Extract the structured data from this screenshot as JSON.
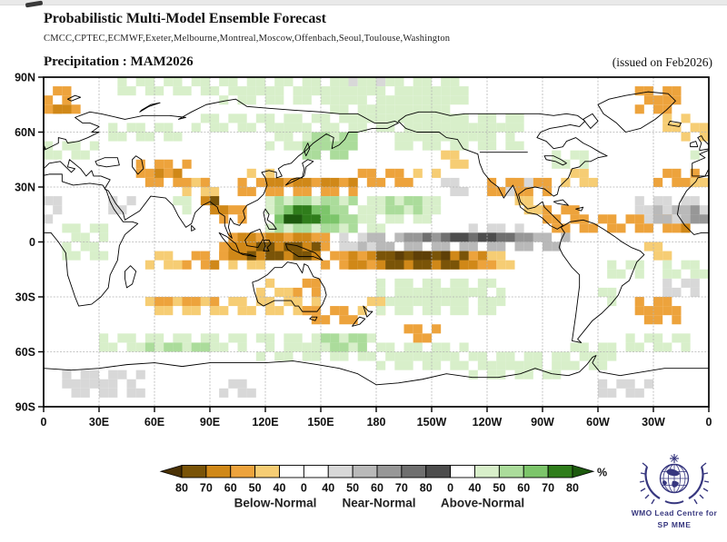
{
  "header": {
    "title": "Probabilistic Multi-Model Ensemble Forecast",
    "models": "CMCC,CPTEC,ECMWF,Exeter,Melbourne,Montreal,Moscow,Offenbach,Seoul,Toulouse,Washington",
    "subtitle": "Precipitation : MAM2026",
    "issued": "(issued on Feb2026)"
  },
  "chart_data": {
    "type": "heatmap",
    "title": "Precipitation : MAM2026",
    "projection": "equirectangular world map centered on 180",
    "grid": "dashed 30-degree graticule",
    "x_ticks": [
      "0",
      "30E",
      "60E",
      "90E",
      "120E",
      "150E",
      "180",
      "150W",
      "120W",
      "90W",
      "60W",
      "30W",
      "0"
    ],
    "y_ticks": [
      "90N",
      "60N",
      "30N",
      "0",
      "30S",
      "60S",
      "90S"
    ],
    "legend": {
      "unit": "%",
      "categories": [
        "Below-Normal",
        "Near-Normal",
        "Above-Normal"
      ],
      "tick_labels": [
        "80",
        "70",
        "60",
        "50",
        "40",
        "0",
        "40",
        "50",
        "60",
        "70",
        "80",
        "0",
        "40",
        "50",
        "60",
        "70",
        "80"
      ],
      "segment_colors": [
        "#7a5408",
        "#d08818",
        "#eda33c",
        "#f6cd74",
        "#ffffff",
        "#ffffff",
        "#d8d8d8",
        "#b9b9b9",
        "#979797",
        "#6f6f6f",
        "#4d4d4d",
        "#ffffff",
        "#d8efca",
        "#abdc9b",
        "#7cc56a",
        "#2f7d1b"
      ],
      "arrow_left_color": "#4a3206",
      "arrow_right_color": "#1d5a0e"
    },
    "palette": {
      "b": {
        "40": "#f6cd74",
        "50": "#eda33c",
        "60": "#d08818",
        "70": "#7a5408",
        "80": "#5e3f07"
      },
      "n": {
        "40": "#d8d8d8",
        "50": "#b9b9b9",
        "60": "#979797",
        "70": "#6f6f6f",
        "80": "#4d4d4d"
      },
      "a": {
        "40": "#d8efca",
        "50": "#abdc9b",
        "60": "#7cc56a",
        "70": "#2f7d1b",
        "80": "#1d5a0e"
      }
    },
    "cells": [
      [
        0,
        22,
        68,
        77,
        "b",
        50
      ],
      [
        5,
        15,
        70,
        75,
        "b",
        60
      ],
      [
        0,
        14,
        77,
        83,
        "b",
        50
      ],
      [
        352,
        360,
        28,
        35,
        "b",
        40
      ],
      [
        52,
        78,
        32,
        43,
        "b",
        50
      ],
      [
        62,
        74,
        35,
        42,
        "b",
        60
      ],
      [
        75,
        95,
        27,
        36,
        "b",
        40
      ],
      [
        80,
        92,
        29,
        35,
        "b",
        50
      ],
      [
        85,
        99,
        15,
        27,
        "b",
        60
      ],
      [
        88,
        94,
        20,
        25,
        "b",
        70
      ],
      [
        96,
        110,
        8,
        18,
        "b",
        50
      ],
      [
        112,
        126,
        35,
        42,
        "b",
        40
      ],
      [
        106,
        170,
        27,
        35,
        "b",
        50
      ],
      [
        120,
        168,
        29,
        35,
        "b",
        60
      ],
      [
        168,
        202,
        30,
        38,
        "b",
        50
      ],
      [
        200,
        217,
        33,
        41,
        "b",
        40
      ],
      [
        213,
        221,
        55,
        61,
        "b",
        40
      ],
      [
        217,
        228,
        40,
        49,
        "b",
        40
      ],
      [
        238,
        274,
        25,
        34,
        "b",
        50
      ],
      [
        254,
        268,
        15,
        24,
        "b",
        40
      ],
      [
        96,
        156,
        -10,
        7,
        "b",
        50
      ],
      [
        102,
        152,
        -9,
        4,
        "b",
        60
      ],
      [
        108,
        148,
        -9,
        0,
        "b",
        70
      ],
      [
        152,
        246,
        -16,
        -3,
        "b",
        50
      ],
      [
        163,
        240,
        -14,
        -4,
        "b",
        60
      ],
      [
        181,
        231,
        -13,
        -4,
        "b",
        70
      ],
      [
        191,
        219,
        -11,
        -6,
        "b",
        80
      ],
      [
        240,
        256,
        -16,
        -7,
        "b",
        40
      ],
      [
        55,
        76,
        -14,
        -6,
        "b",
        40
      ],
      [
        77,
        100,
        -16,
        -6,
        "b",
        50
      ],
      [
        85,
        94,
        -15,
        -9,
        "b",
        60
      ],
      [
        100,
        118,
        -14,
        -7,
        "b",
        40
      ],
      [
        57,
        118,
        -38,
        -29,
        "b",
        40
      ],
      [
        60,
        96,
        -36,
        -30,
        "b",
        50
      ],
      [
        113,
        123,
        -29,
        -20,
        "b",
        40
      ],
      [
        135,
        152,
        -31,
        -20,
        "b",
        50
      ],
      [
        124,
        141,
        -34,
        -26,
        "b",
        40
      ],
      [
        120,
        150,
        -41,
        -32,
        "b",
        40
      ],
      [
        140,
        172,
        -45,
        -34,
        "b",
        50
      ],
      [
        172,
        187,
        -41,
        -31,
        "b",
        40
      ],
      [
        194,
        214,
        -53,
        -44,
        "b",
        50
      ],
      [
        322,
        347,
        -44,
        -32,
        "b",
        50
      ],
      [
        282,
        302,
        32,
        41,
        "b",
        40
      ],
      [
        332,
        354,
        29,
        42,
        "b",
        50
      ],
      [
        283,
        345,
        4,
        13,
        "b",
        50
      ],
      [
        344,
        357,
        5,
        12,
        "b",
        60
      ],
      [
        272,
        292,
        10,
        18,
        "b",
        50
      ],
      [
        272,
        285,
        3,
        10,
        "b",
        50
      ],
      [
        320,
        346,
        71,
        83,
        "b",
        50
      ],
      [
        336,
        352,
        61,
        70,
        "b",
        40
      ],
      [
        345,
        359,
        55,
        65,
        "b",
        40
      ],
      [
        326,
        341,
        -8,
        -2,
        "b",
        40
      ],
      [
        168,
        285,
        -3,
        5,
        "n",
        50
      ],
      [
        192,
        266,
        -2,
        4,
        "n",
        60
      ],
      [
        205,
        258,
        -1,
        3,
        "n",
        70
      ],
      [
        215,
        250,
        0,
        3,
        "n",
        80
      ],
      [
        158,
        180,
        -3,
        7,
        "n",
        40
      ],
      [
        230,
        262,
        4,
        12,
        "n",
        40
      ],
      [
        320,
        362,
        10,
        26,
        "n",
        40
      ],
      [
        330,
        356,
        12,
        22,
        "n",
        50
      ],
      [
        348,
        359,
        12,
        20,
        "n",
        60
      ],
      [
        0,
        12,
        10,
        24,
        "n",
        40
      ],
      [
        252,
        263,
        26,
        33,
        "n",
        40
      ],
      [
        215,
        232,
        25,
        33,
        "n",
        40
      ],
      [
        36,
        48,
        14,
        24,
        "n",
        40
      ],
      [
        10,
        55,
        -86,
        -72,
        "n",
        40
      ],
      [
        300,
        332,
        -86,
        -76,
        "n",
        40
      ],
      [
        95,
        117,
        -84,
        -76,
        "n",
        40
      ],
      [
        155,
        185,
        83,
        89,
        "n",
        40
      ],
      [
        335,
        357,
        -30,
        -20,
        "n",
        40
      ],
      [
        118,
        186,
        4,
        26,
        "a",
        40
      ],
      [
        124,
        172,
        7,
        23,
        "a",
        50
      ],
      [
        127,
        158,
        9,
        20,
        "a",
        60
      ],
      [
        129,
        149,
        11,
        19,
        "a",
        70
      ],
      [
        132,
        141,
        12,
        17,
        "a",
        80
      ],
      [
        184,
        213,
        10,
        27,
        "a",
        40
      ],
      [
        187,
        206,
        13,
        23,
        "a",
        50
      ],
      [
        118,
        165,
        50,
        72,
        "a",
        40
      ],
      [
        150,
        230,
        60,
        88,
        "a",
        40
      ],
      [
        190,
        262,
        52,
        70,
        "a",
        40
      ],
      [
        95,
        150,
        76,
        88,
        "a",
        40
      ],
      [
        140,
        168,
        46,
        62,
        "a",
        50
      ],
      [
        2,
        28,
        45,
        57,
        "a",
        40
      ],
      [
        35,
        75,
        54,
        66,
        "a",
        40
      ],
      [
        78,
        125,
        58,
        72,
        "a",
        40
      ],
      [
        70,
        78,
        17,
        26,
        "a",
        40
      ],
      [
        8,
        36,
        -9,
        8,
        "a",
        40
      ],
      [
        304,
        324,
        -21,
        -8,
        "a",
        40
      ],
      [
        300,
        312,
        -33,
        -24,
        "a",
        40
      ],
      [
        334,
        360,
        -19,
        -9,
        "a",
        40
      ],
      [
        30,
        110,
        -61,
        -51,
        "a",
        40
      ],
      [
        55,
        95,
        -59,
        -53,
        "a",
        50
      ],
      [
        115,
        180,
        -63,
        -50,
        "a",
        40
      ],
      [
        148,
        175,
        -59,
        -52,
        "a",
        50
      ],
      [
        180,
        232,
        -71,
        -57,
        "a",
        40
      ],
      [
        232,
        285,
        -76,
        -62,
        "a",
        40
      ],
      [
        283,
        308,
        -69,
        -57,
        "a",
        40
      ],
      [
        178,
        252,
        -39,
        -20,
        "a",
        40
      ],
      [
        315,
        352,
        -62,
        -52,
        "a",
        40
      ],
      [
        276,
        296,
        41,
        49,
        "a",
        40
      ],
      [
        40,
        95,
        80,
        88,
        "a",
        40
      ],
      [
        348,
        360,
        43,
        51,
        "a",
        40
      ]
    ]
  },
  "map_style": {
    "coastline_color": "#000000",
    "grid_color": "#b3b3b3",
    "frame_color": "#000000",
    "label_color": "#111111"
  },
  "logo": {
    "line1": "WMO Lead Centre for",
    "line2": "SP MME",
    "color": "#37377f"
  }
}
